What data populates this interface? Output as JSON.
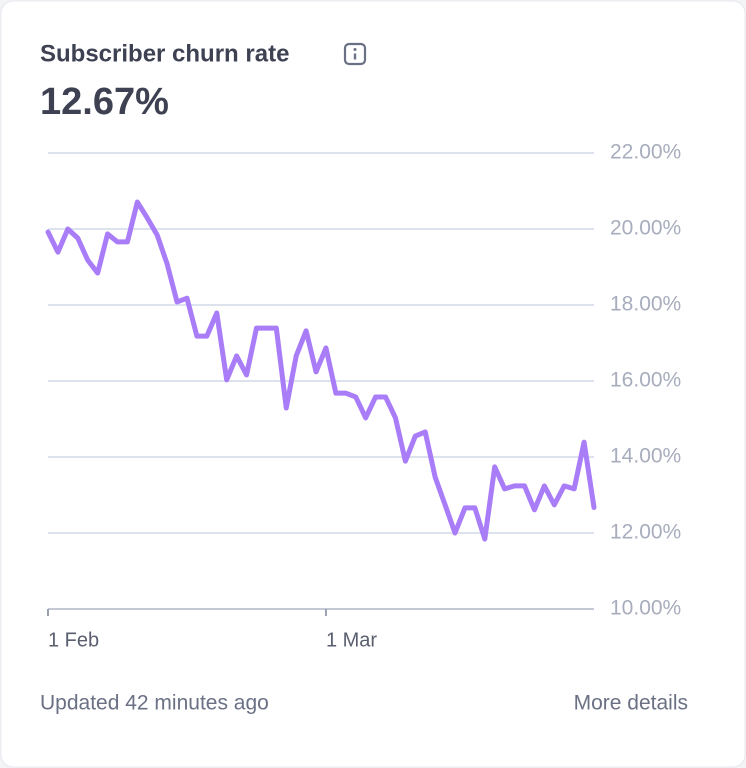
{
  "chart_data": {
    "type": "line",
    "title": "Subscriber churn rate",
    "headline": "12.67%",
    "footer_left": "Updated 42 minutes ago",
    "footer_right": "More details",
    "categories": [
      "1 Feb",
      null,
      null,
      null,
      null,
      null,
      null,
      null,
      null,
      null,
      null,
      null,
      null,
      null,
      null,
      null,
      null,
      null,
      null,
      null,
      null,
      null,
      null,
      null,
      null,
      null,
      null,
      null,
      "1 Mar",
      null,
      null,
      null,
      null,
      null,
      null,
      null,
      null,
      null,
      null,
      null,
      null,
      null,
      null,
      null,
      null,
      null,
      null,
      null,
      null,
      null,
      null,
      null,
      null,
      null,
      null,
      null
    ],
    "series": [
      {
        "name": "Churn rate",
        "color": "#a97cf8",
        "values": [
          19.92,
          19.39,
          20.0,
          19.76,
          19.18,
          18.84,
          19.87,
          19.66,
          19.66,
          20.71,
          20.29,
          19.84,
          19.08,
          18.08,
          18.18,
          17.18,
          17.18,
          17.79,
          16.03,
          16.66,
          16.16,
          17.39,
          17.39,
          17.39,
          15.29,
          16.66,
          17.32,
          16.24,
          16.87,
          15.68,
          15.68,
          15.58,
          15.03,
          15.58,
          15.58,
          15.03,
          13.89,
          14.55,
          14.66,
          13.47,
          12.74,
          12.0,
          12.66,
          12.66,
          11.84,
          13.74,
          13.16,
          13.24,
          13.24,
          12.61,
          13.24,
          12.74,
          13.24,
          13.16,
          14.39,
          12.67
        ]
      }
    ],
    "ylim": [
      10,
      22
    ],
    "yticks": [
      {
        "value": 10,
        "label": "10.00%"
      },
      {
        "value": 12,
        "label": "12.00%"
      },
      {
        "value": 14,
        "label": "14.00%"
      },
      {
        "value": 16,
        "label": "16.00%"
      },
      {
        "value": 18,
        "label": "18.00%"
      },
      {
        "value": 20,
        "label": "20.00%"
      },
      {
        "value": 22,
        "label": "22.00%"
      }
    ],
    "grid": true
  }
}
